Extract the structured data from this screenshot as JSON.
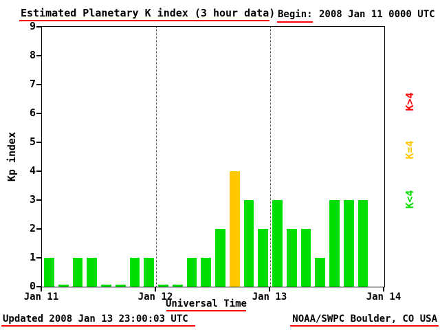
{
  "header": {
    "title": "Estimated Planetary K index (3 hour data)",
    "begin_label": "Begin:",
    "begin_value": "2008 Jan 11 0000 UTC"
  },
  "footer": {
    "updated": "Updated 2008 Jan 13 23:00:03 UTC",
    "source": "NOAA/SWPC Boulder, CO USA"
  },
  "legend": {
    "gt4": {
      "label": "K>4",
      "color": "#ff0000"
    },
    "eq4": {
      "label": "K=4",
      "color": "#ffc800"
    },
    "lt4": {
      "label": "K<4",
      "color": "#00dd00"
    }
  },
  "chart_data": {
    "type": "bar",
    "title": "Estimated Planetary K index (3 hour data)",
    "xlabel": "Universal Time",
    "ylabel": "Kp index",
    "ylim": [
      0,
      9
    ],
    "yticks": [
      0,
      1,
      2,
      3,
      4,
      5,
      6,
      7,
      8,
      9
    ],
    "x_tick_labels": [
      "Jan 11",
      "Jan 12",
      "Jan 13",
      "Jan 14"
    ],
    "bin_hours": 3,
    "bins_per_day": 8,
    "values": [
      1,
      0,
      1,
      1,
      0,
      0,
      1,
      1,
      0,
      0,
      1,
      1,
      2,
      4,
      3,
      2,
      3,
      2,
      2,
      1,
      3,
      3,
      3
    ],
    "color_rule": {
      "lt4": "#00dd00",
      "eq4": "#ffc800",
      "gt4": "#ff0000"
    },
    "grid": "dotted vertical lines at day boundaries",
    "legend_position": "right, rotated"
  }
}
